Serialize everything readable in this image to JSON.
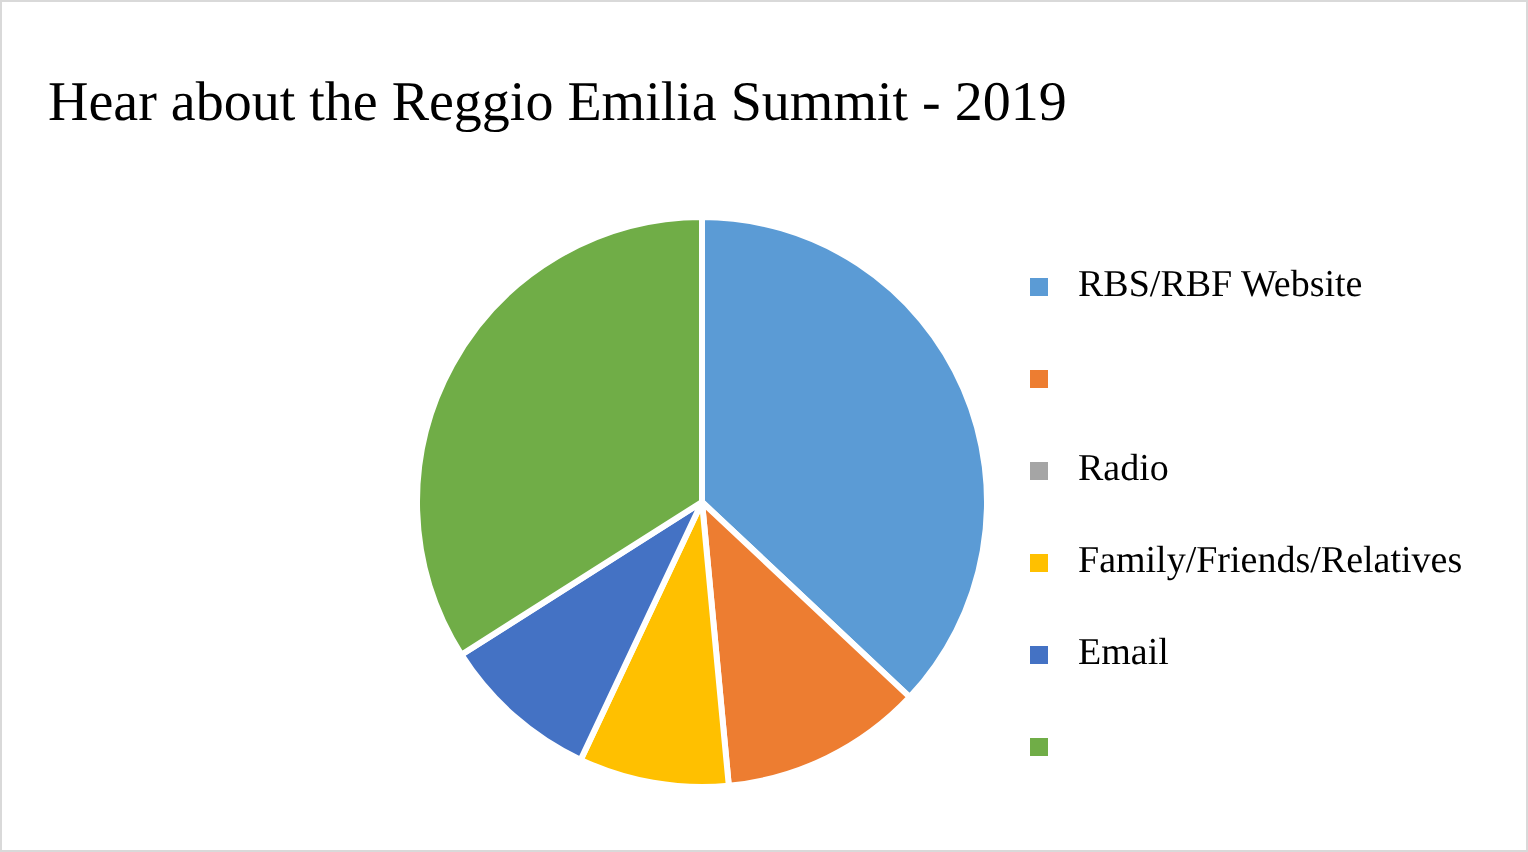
{
  "chart_data": {
    "type": "pie",
    "title": "Hear about the Reggio Emilia Summit - 2019",
    "categories": [
      "RBS/RBF Website",
      null,
      "Radio",
      "Family/Friends/Relatives",
      "Email",
      null
    ],
    "values": [
      37,
      11.5,
      0,
      8.5,
      9,
      34
    ],
    "colors": [
      "#5b9bd5",
      "#ed7d31",
      "#a5a5a5",
      "#ffc000",
      "#4472c4",
      "#70ad47"
    ],
    "legend": "right"
  }
}
